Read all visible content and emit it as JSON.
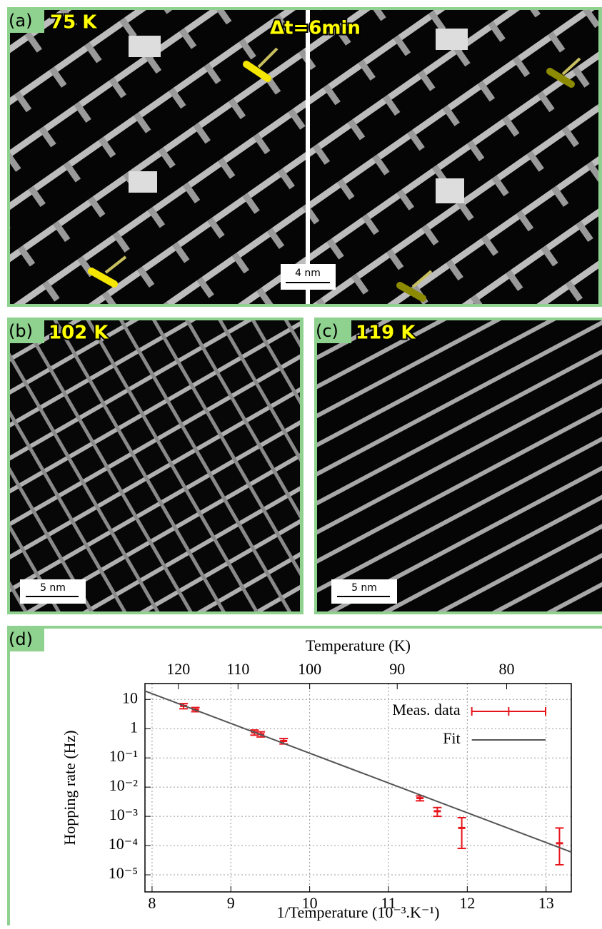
{
  "panels": {
    "a": {
      "label": "(a)",
      "temperature": "75 K",
      "interval": "Δt=6min",
      "scale_bar": "4 nm"
    },
    "b": {
      "label": "(b)",
      "temperature": "102 K",
      "scale_bar": "5 nm"
    },
    "c": {
      "label": "(c)",
      "temperature": "119 K",
      "scale_bar": "5 nm"
    },
    "d": {
      "label": "(d)"
    }
  },
  "chart_data": {
    "type": "scatter",
    "x_label": "1/Temperature  (10⁻³.K⁻¹)",
    "y_label": "Hopping rate (Hz)",
    "x2_label": "Temperature (K)",
    "xlim": [
      7.91,
      13.32
    ],
    "xticks": [
      8,
      9,
      10,
      11,
      12,
      13
    ],
    "x2ticks": [
      120,
      110,
      100,
      90,
      80
    ],
    "ylim": [
      2.6e-06,
      35
    ],
    "log_y": true,
    "grid": true,
    "legend": "top-right",
    "yticks": [
      10,
      1,
      {
        "value": 0.1,
        "label": "10⁻¹"
      },
      {
        "value": 0.01,
        "label": "10⁻²"
      },
      {
        "value": 0.001,
        "label": "10⁻³"
      },
      {
        "value": 0.0001,
        "label": "10⁻⁴"
      },
      {
        "value": 1e-05,
        "label": "10⁻⁵"
      }
    ],
    "series": [
      {
        "name": "Meas. data",
        "color": "#e8141c",
        "x": [
          8.4,
          8.55,
          9.3,
          9.38,
          9.67,
          11.4,
          11.62,
          11.93,
          13.17
        ],
        "values": [
          6,
          4.5,
          0.75,
          0.65,
          0.38,
          0.0042,
          0.0015,
          0.0004,
          0.00012
        ],
        "lower": [
          4.8,
          3.8,
          0.6,
          0.52,
          0.3,
          0.0034,
          0.001,
          8e-05,
          2.2e-05
        ],
        "upper": [
          7.2,
          5.3,
          0.9,
          0.78,
          0.46,
          0.005,
          0.002,
          0.0009,
          0.0004
        ]
      },
      {
        "name": "Fit",
        "color": "#555555",
        "x": [
          7.91,
          13.32
        ],
        "values": [
          19.5,
          6e-05
        ]
      }
    ]
  }
}
